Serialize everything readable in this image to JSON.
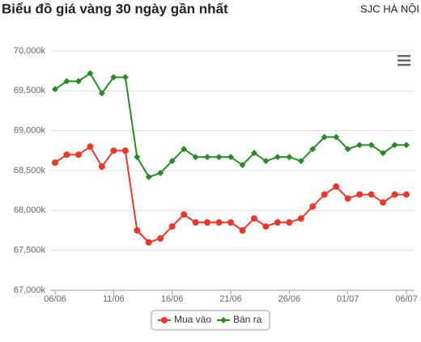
{
  "header": {
    "title": "Biểu đồ giá vàng 30 ngày gần nhất",
    "location": "SJC HÀ NỘI"
  },
  "chart_data": {
    "type": "line",
    "categories": [
      "06/06",
      null,
      null,
      null,
      null,
      "11/06",
      null,
      null,
      null,
      null,
      "16/06",
      null,
      null,
      null,
      null,
      "21/06",
      null,
      null,
      null,
      null,
      "26/06",
      null,
      null,
      null,
      null,
      "01/07",
      null,
      null,
      null,
      null,
      "06/07"
    ],
    "series": [
      {
        "name": "Mua vào",
        "color": "#e8392b",
        "values": [
          68600,
          68700,
          68700,
          68800,
          68550,
          68750,
          68750,
          67750,
          67600,
          67650,
          67800,
          67950,
          67850,
          67850,
          67850,
          67850,
          67750,
          67900,
          67800,
          67850,
          67850,
          67900,
          68050,
          68200,
          68300,
          68150,
          68200,
          68200,
          68100,
          68200,
          68200
        ]
      },
      {
        "name": "Bán ra",
        "color": "#2a8a2a",
        "values": [
          69520,
          69620,
          69620,
          69720,
          69470,
          69670,
          69670,
          68670,
          68420,
          68470,
          68620,
          68770,
          68670,
          68670,
          68670,
          68670,
          68570,
          68720,
          68620,
          68670,
          68670,
          68620,
          68770,
          68920,
          68920,
          68770,
          68820,
          68820,
          68720,
          68820,
          68820
        ]
      }
    ],
    "ylim": [
      67000,
      70000
    ],
    "yticks": [
      {
        "value": 67000,
        "label": "67,000k"
      },
      {
        "value": 67500,
        "label": "67,500k"
      },
      {
        "value": 68000,
        "label": "68,000k"
      },
      {
        "value": 68500,
        "label": "68,500k"
      },
      {
        "value": 69000,
        "label": "69,000k"
      },
      {
        "value": 69500,
        "label": "69,500k"
      },
      {
        "value": 70000,
        "label": "70,000k"
      }
    ],
    "grid": true,
    "legend": "bottom"
  }
}
